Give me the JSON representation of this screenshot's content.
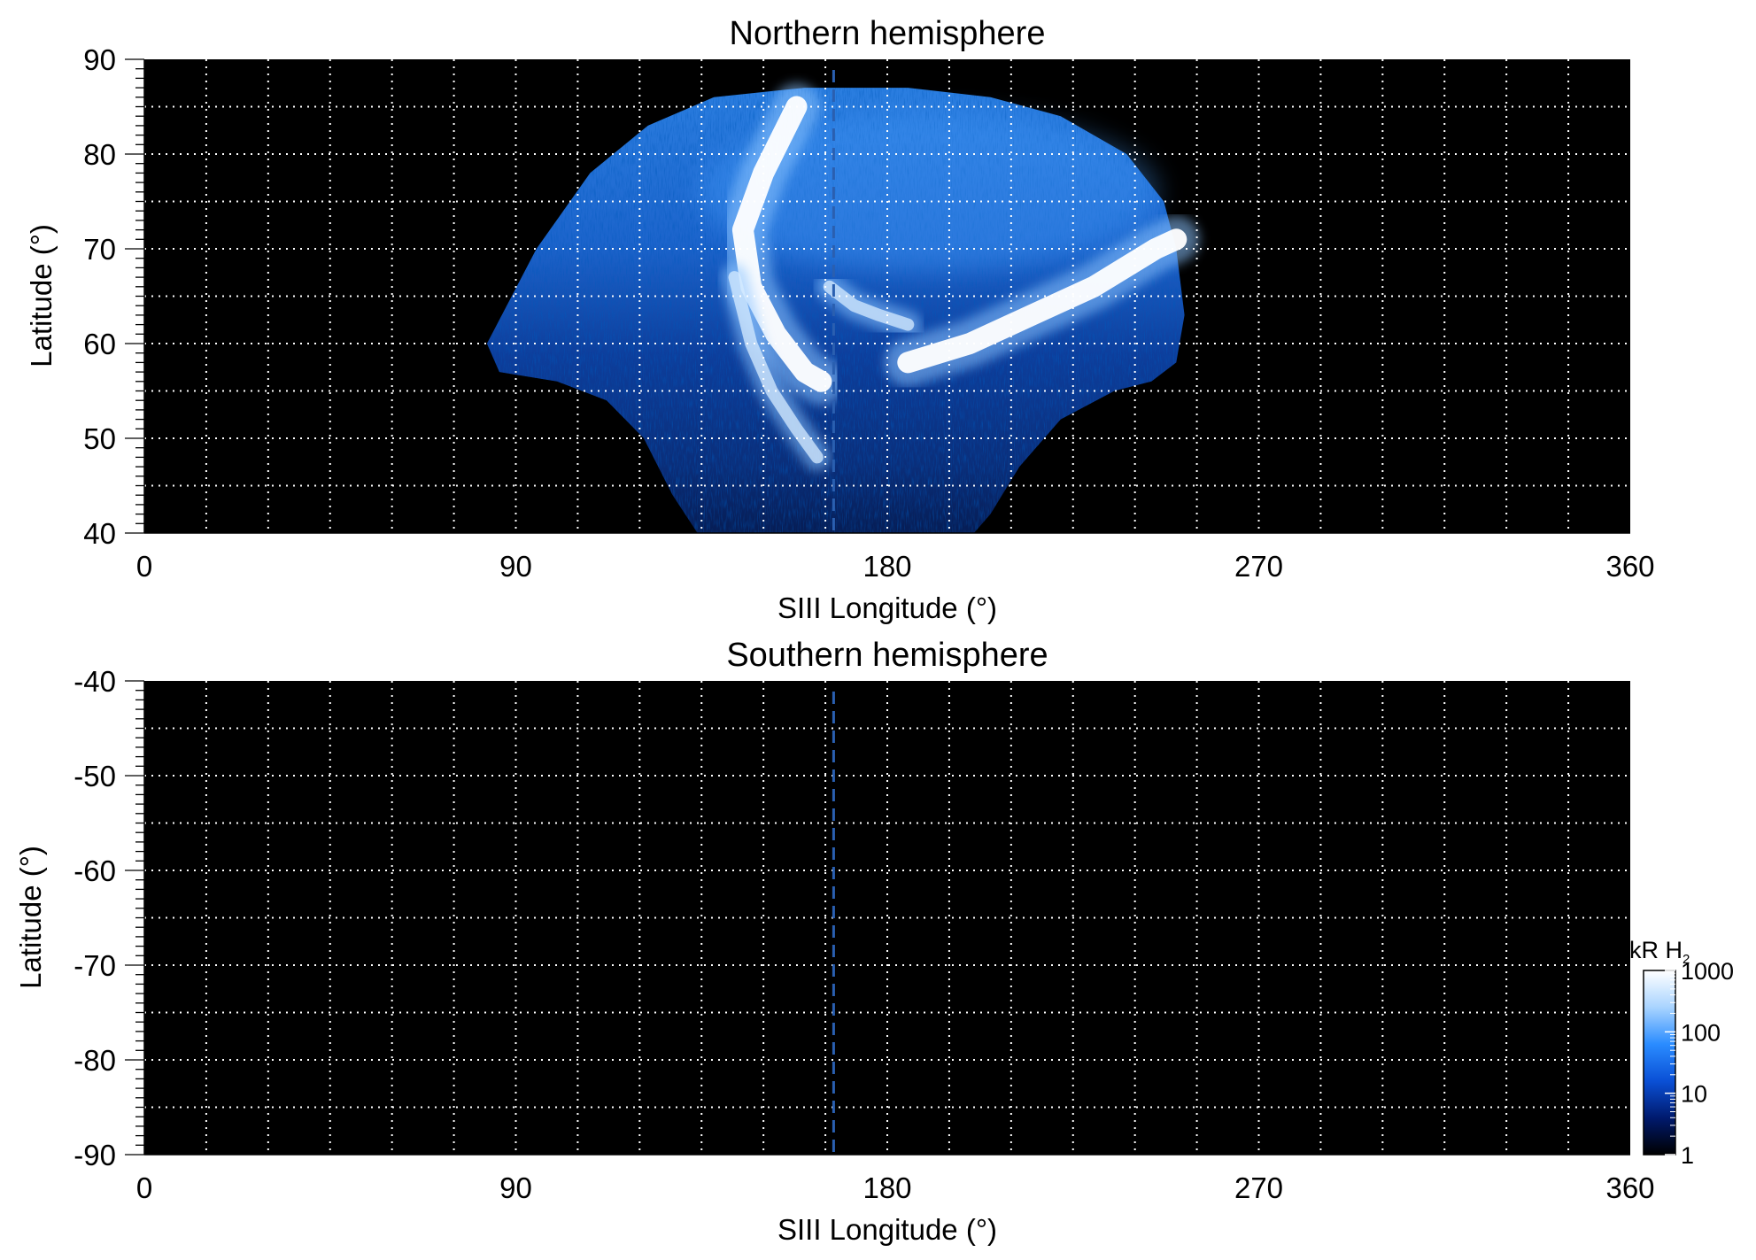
{
  "chart_data": [
    {
      "type": "heatmap",
      "title": "Northern hemisphere",
      "xlabel": "SIII Longitude (°)",
      "ylabel": "Latitude (°)",
      "xlim": [
        0,
        360
      ],
      "ylim": [
        40,
        90
      ],
      "xticks": [
        0,
        90,
        180,
        270,
        360
      ],
      "xtick_labels": [
        "0",
        "90",
        "180",
        "270",
        "360"
      ],
      "yticks": [
        40,
        50,
        60,
        70,
        80,
        90
      ],
      "ytick_labels": [
        "40",
        "50",
        "60",
        "70",
        "80",
        "90"
      ],
      "grid": true,
      "grid_step_lon": 15,
      "grid_step_lat": 5,
      "background": "#000000",
      "reference_longitude": 167,
      "reference_color": "#2a5fb0",
      "features": [
        {
          "kind": "main_oval_west",
          "lon": [
            158,
            150,
            145,
            147,
            153,
            160,
            164
          ],
          "lat": [
            85,
            78,
            72,
            66,
            61,
            57,
            56
          ],
          "intensity_kR": 1000
        },
        {
          "kind": "main_oval_east",
          "lon": [
            185,
            200,
            215,
            230,
            245,
            250
          ],
          "lat": [
            58,
            60,
            63,
            66,
            70,
            71
          ],
          "intensity_kR": 1000
        },
        {
          "kind": "inner_arc",
          "lon": [
            143,
            147,
            152,
            158,
            163
          ],
          "lat": [
            67,
            60,
            55,
            51,
            48
          ],
          "intensity_kR": 400
        },
        {
          "kind": "polar_patch",
          "lon": [
            166,
            172,
            178,
            185
          ],
          "lat": [
            66,
            64,
            63,
            62
          ],
          "intensity_kR": 300
        }
      ]
    },
    {
      "type": "heatmap",
      "title": "Southern hemisphere",
      "xlabel": "SIII Longitude (°)",
      "ylabel": "Latitude (°)",
      "xlim": [
        0,
        360
      ],
      "ylim": [
        -90,
        -40
      ],
      "xticks": [
        0,
        90,
        180,
        270,
        360
      ],
      "xtick_labels": [
        "0",
        "90",
        "180",
        "270",
        "360"
      ],
      "yticks": [
        -40,
        -50,
        -60,
        -70,
        -80,
        -90
      ],
      "ytick_labels": [
        "-40",
        "-50",
        "-60",
        "-70",
        "-80",
        "-90"
      ],
      "grid": true,
      "grid_step_lon": 15,
      "grid_step_lat": 5,
      "background": "#000000",
      "reference_longitude": 167,
      "reference_color": "#2a5fb0",
      "features": []
    }
  ],
  "colorbar": {
    "label": "kR H",
    "label_subscript": "2",
    "scale": "log",
    "range": [
      1,
      1000
    ],
    "ticks": [
      1,
      10,
      100,
      1000
    ],
    "tick_labels": [
      "1",
      "10",
      "100",
      "1000"
    ],
    "colors": [
      "#000000",
      "#001a6e",
      "#0a50d6",
      "#2a8cff",
      "#a9d4ff",
      "#ffffff"
    ]
  }
}
